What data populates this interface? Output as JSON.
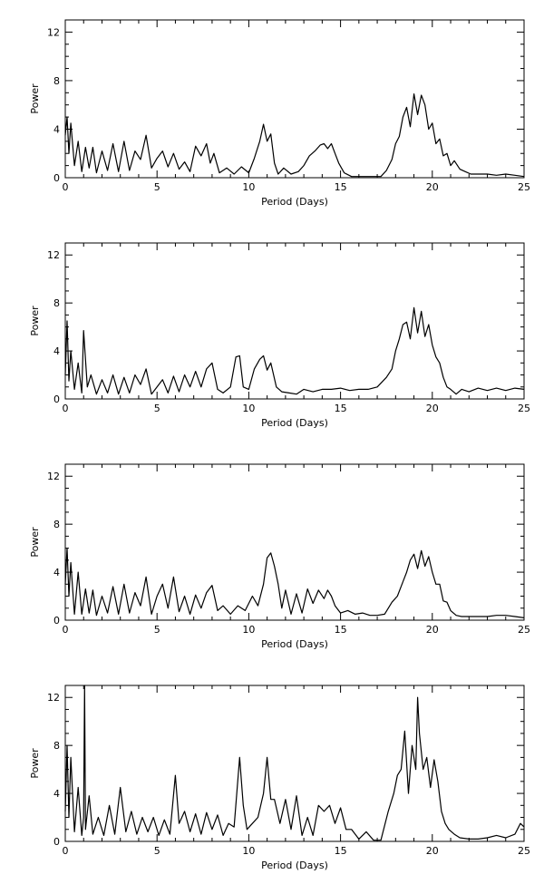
{
  "chart_data": [
    {
      "type": "line",
      "xlabel": "Period (Days)",
      "ylabel": "Power",
      "xlim": [
        0,
        25
      ],
      "ylim": [
        0,
        13
      ],
      "xticks": [
        0,
        5,
        10,
        15,
        20,
        25
      ],
      "yticks": [
        0,
        4,
        8,
        12
      ],
      "grid": false,
      "series": [
        {
          "x": [
            0.0,
            0.1,
            0.2,
            0.3,
            0.5,
            0.7,
            0.9,
            1.1,
            1.3,
            1.5,
            1.7,
            2.0,
            2.3,
            2.6,
            2.9,
            3.2,
            3.5,
            3.8,
            4.1,
            4.4,
            4.7,
            5.0,
            5.3,
            5.6,
            5.9,
            6.2,
            6.5,
            6.8,
            7.1,
            7.4,
            7.7,
            7.9,
            8.1,
            8.4,
            8.8,
            9.2,
            9.6,
            10.0,
            10.3,
            10.6,
            10.8,
            11.0,
            11.2,
            11.4,
            11.6,
            11.9,
            12.3,
            12.7,
            13.0,
            13.3,
            13.6,
            13.9,
            14.1,
            14.3,
            14.5,
            14.7,
            14.9,
            15.2,
            15.6,
            16.0,
            16.4,
            16.8,
            17.2,
            17.5,
            17.8,
            18.0,
            18.2,
            18.4,
            18.6,
            18.8,
            19.0,
            19.2,
            19.4,
            19.6,
            19.8,
            20.0,
            20.2,
            20.4,
            20.6,
            20.8,
            21.0,
            21.2,
            21.5,
            21.8,
            22.1,
            22.5,
            23.0,
            23.5,
            24.0,
            24.5,
            25.0
          ],
          "y": [
            3.5,
            5.0,
            2.0,
            4.5,
            1.0,
            3.0,
            0.5,
            2.5,
            0.8,
            2.5,
            0.4,
            2.2,
            0.6,
            2.8,
            0.5,
            3.0,
            0.6,
            2.2,
            1.5,
            3.5,
            0.8,
            1.6,
            2.2,
            0.9,
            2.0,
            0.7,
            1.3,
            0.5,
            2.6,
            1.8,
            2.8,
            1.2,
            2.0,
            0.4,
            0.8,
            0.3,
            0.9,
            0.4,
            1.6,
            3.0,
            4.4,
            3.0,
            3.6,
            1.2,
            0.3,
            0.8,
            0.3,
            0.5,
            1.0,
            1.8,
            2.2,
            2.7,
            2.8,
            2.4,
            2.8,
            2.0,
            1.2,
            0.4,
            0.1,
            0.1,
            0.1,
            0.1,
            0.1,
            0.6,
            1.5,
            2.8,
            3.4,
            5.0,
            5.8,
            4.2,
            6.9,
            5.2,
            6.8,
            6.0,
            4.0,
            4.5,
            2.8,
            3.2,
            1.8,
            2.0,
            1.0,
            1.4,
            0.7,
            0.5,
            0.3,
            0.3,
            0.3,
            0.2,
            0.3,
            0.2,
            0.1
          ]
        }
      ]
    },
    {
      "type": "line",
      "xlabel": "Period (Days)",
      "ylabel": "Power",
      "xlim": [
        0,
        25
      ],
      "ylim": [
        0,
        13
      ],
      "xticks": [
        0,
        5,
        10,
        15,
        20,
        25
      ],
      "yticks": [
        0,
        4,
        8,
        12
      ],
      "grid": false,
      "series": [
        {
          "x": [
            0.0,
            0.1,
            0.2,
            0.3,
            0.5,
            0.7,
            0.9,
            1.0,
            1.2,
            1.4,
            1.7,
            2.0,
            2.3,
            2.6,
            2.9,
            3.2,
            3.5,
            3.8,
            4.1,
            4.4,
            4.7,
            5.0,
            5.3,
            5.6,
            5.9,
            6.2,
            6.5,
            6.8,
            7.1,
            7.4,
            7.7,
            8.0,
            8.3,
            8.6,
            9.0,
            9.3,
            9.5,
            9.7,
            10.0,
            10.3,
            10.6,
            10.8,
            11.0,
            11.2,
            11.5,
            11.8,
            12.2,
            12.6,
            13.0,
            13.5,
            14.0,
            14.5,
            15.0,
            15.5,
            16.0,
            16.5,
            17.0,
            17.5,
            17.8,
            18.0,
            18.2,
            18.4,
            18.6,
            18.8,
            19.0,
            19.2,
            19.4,
            19.6,
            19.8,
            20.0,
            20.2,
            20.4,
            20.6,
            20.8,
            21.0,
            21.3,
            21.6,
            22.0,
            22.5,
            23.0,
            23.5,
            24.0,
            24.5,
            25.0
          ],
          "y": [
            2.0,
            6.5,
            1.5,
            4.0,
            0.8,
            3.0,
            0.5,
            5.7,
            1.0,
            2.0,
            0.4,
            1.6,
            0.5,
            2.0,
            0.4,
            1.8,
            0.5,
            2.0,
            1.2,
            2.5,
            0.4,
            1.0,
            1.6,
            0.5,
            1.9,
            0.6,
            2.0,
            1.0,
            2.3,
            1.0,
            2.5,
            3.0,
            0.8,
            0.5,
            1.0,
            3.5,
            3.6,
            1.0,
            0.8,
            2.5,
            3.3,
            3.6,
            2.4,
            3.0,
            1.0,
            0.6,
            0.5,
            0.4,
            0.8,
            0.6,
            0.8,
            0.8,
            0.9,
            0.7,
            0.8,
            0.8,
            1.0,
            1.8,
            2.5,
            4.0,
            5.0,
            6.2,
            6.4,
            5.0,
            7.6,
            5.5,
            7.3,
            5.2,
            6.2,
            4.5,
            3.5,
            3.0,
            1.8,
            1.0,
            0.8,
            0.4,
            0.8,
            0.6,
            0.9,
            0.7,
            0.9,
            0.7,
            0.9,
            0.8
          ]
        }
      ]
    },
    {
      "type": "line",
      "xlabel": "Period (Days)",
      "ylabel": "Power",
      "xlim": [
        0,
        25
      ],
      "ylim": [
        0,
        13
      ],
      "xticks": [
        0,
        5,
        10,
        15,
        20,
        25
      ],
      "yticks": [
        0,
        4,
        8,
        12
      ],
      "grid": false,
      "series": [
        {
          "x": [
            0.0,
            0.1,
            0.2,
            0.3,
            0.5,
            0.7,
            0.9,
            1.1,
            1.3,
            1.5,
            1.7,
            2.0,
            2.3,
            2.6,
            2.9,
            3.2,
            3.5,
            3.8,
            4.1,
            4.4,
            4.7,
            5.0,
            5.3,
            5.6,
            5.9,
            6.2,
            6.5,
            6.8,
            7.1,
            7.4,
            7.7,
            8.0,
            8.3,
            8.6,
            9.0,
            9.4,
            9.8,
            10.2,
            10.5,
            10.8,
            11.0,
            11.2,
            11.4,
            11.6,
            11.8,
            12.0,
            12.3,
            12.6,
            12.9,
            13.2,
            13.5,
            13.8,
            14.1,
            14.3,
            14.5,
            14.7,
            15.0,
            15.4,
            15.8,
            16.2,
            16.6,
            17.0,
            17.4,
            17.8,
            18.1,
            18.4,
            18.6,
            18.8,
            19.0,
            19.2,
            19.4,
            19.6,
            19.8,
            20.0,
            20.2,
            20.4,
            20.6,
            20.8,
            21.0,
            21.3,
            21.6,
            22.0,
            22.5,
            23.0,
            23.5,
            24.0,
            24.5,
            25.0
          ],
          "y": [
            3.0,
            6.0,
            2.0,
            4.8,
            0.5,
            4.0,
            0.5,
            2.6,
            0.6,
            2.5,
            0.4,
            2.0,
            0.6,
            2.8,
            0.5,
            3.0,
            0.6,
            2.3,
            1.2,
            3.6,
            0.5,
            2.0,
            3.0,
            1.0,
            3.6,
            0.7,
            2.0,
            0.5,
            2.1,
            1.0,
            2.3,
            2.9,
            0.8,
            1.2,
            0.5,
            1.2,
            0.8,
            2.0,
            1.2,
            3.0,
            5.2,
            5.6,
            4.5,
            3.0,
            1.0,
            2.5,
            0.5,
            2.2,
            0.6,
            2.6,
            1.4,
            2.5,
            1.8,
            2.5,
            2.0,
            1.2,
            0.6,
            0.8,
            0.5,
            0.6,
            0.4,
            0.4,
            0.5,
            1.5,
            2.0,
            3.2,
            4.0,
            5.0,
            5.5,
            4.3,
            5.8,
            4.5,
            5.3,
            4.0,
            3.0,
            3.0,
            1.6,
            1.5,
            0.8,
            0.4,
            0.3,
            0.3,
            0.3,
            0.3,
            0.4,
            0.4,
            0.3,
            0.2
          ]
        }
      ]
    },
    {
      "type": "line",
      "xlabel": "Period (Days)",
      "ylabel": "Power",
      "xlim": [
        0,
        25
      ],
      "ylim": [
        0,
        13
      ],
      "xticks": [
        0,
        5,
        10,
        15,
        20,
        25
      ],
      "yticks": [
        0,
        4,
        8,
        12
      ],
      "grid": false,
      "series": [
        {
          "x": [
            0.0,
            0.1,
            0.2,
            0.3,
            0.5,
            0.7,
            0.9,
            1.0,
            1.05,
            1.1,
            1.3,
            1.5,
            1.8,
            2.1,
            2.4,
            2.7,
            3.0,
            3.3,
            3.6,
            3.9,
            4.2,
            4.5,
            4.8,
            5.1,
            5.4,
            5.7,
            6.0,
            6.2,
            6.5,
            6.8,
            7.1,
            7.4,
            7.7,
            8.0,
            8.3,
            8.6,
            8.9,
            9.2,
            9.5,
            9.7,
            9.9,
            10.2,
            10.5,
            10.8,
            11.0,
            11.2,
            11.4,
            11.7,
            12.0,
            12.3,
            12.6,
            12.9,
            13.2,
            13.5,
            13.8,
            14.1,
            14.4,
            14.7,
            15.0,
            15.3,
            15.6,
            16.0,
            16.4,
            16.8,
            17.2,
            17.6,
            17.9,
            18.1,
            18.3,
            18.5,
            18.7,
            18.9,
            19.1,
            19.2,
            19.3,
            19.5,
            19.7,
            19.9,
            20.1,
            20.3,
            20.5,
            20.7,
            20.9,
            21.2,
            21.5,
            22.0,
            22.5,
            23.0,
            23.5,
            24.0,
            24.5,
            24.8,
            25.0
          ],
          "y": [
            2.5,
            8.0,
            2.0,
            7.0,
            0.8,
            4.5,
            0.5,
            2.0,
            13.0,
            1.0,
            3.8,
            0.6,
            2.0,
            0.5,
            3.0,
            0.6,
            4.5,
            0.8,
            2.5,
            0.6,
            2.0,
            0.8,
            2.0,
            0.5,
            1.8,
            0.6,
            5.5,
            1.5,
            2.5,
            0.8,
            2.3,
            0.6,
            2.4,
            1.0,
            2.2,
            0.5,
            1.5,
            1.2,
            7.0,
            3.0,
            1.0,
            1.5,
            2.0,
            4.0,
            7.0,
            3.5,
            3.5,
            1.5,
            3.5,
            1.0,
            3.8,
            0.5,
            2.0,
            0.5,
            3.0,
            2.5,
            3.0,
            1.5,
            2.8,
            1.0,
            1.0,
            0.2,
            0.8,
            0.1,
            0.1,
            2.5,
            4.0,
            5.5,
            6.0,
            9.2,
            4.0,
            8.0,
            6.0,
            12.0,
            9.0,
            6.0,
            7.0,
            4.5,
            6.8,
            5.0,
            2.5,
            1.5,
            1.0,
            0.6,
            0.3,
            0.2,
            0.2,
            0.3,
            0.5,
            0.3,
            0.6,
            1.5,
            1.2
          ]
        }
      ]
    }
  ]
}
